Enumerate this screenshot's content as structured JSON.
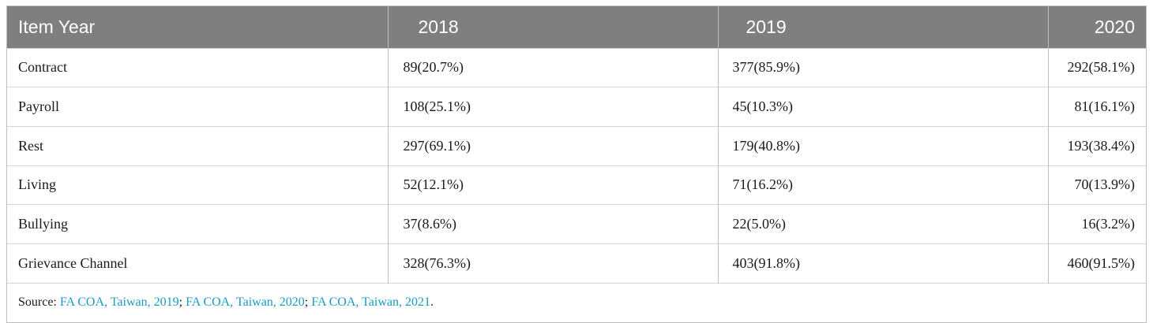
{
  "table": {
    "headers": [
      "Item Year",
      "2018",
      "2019",
      "2020"
    ],
    "rows": [
      {
        "item": "Contract",
        "v2018": "89(20.7%)",
        "v2019": "377(85.9%)",
        "v2020": "292(58.1%)"
      },
      {
        "item": "Payroll",
        "v2018": "108(25.1%)",
        "v2019": "45(10.3%)",
        "v2020": "81(16.1%)"
      },
      {
        "item": "Rest",
        "v2018": "297(69.1%)",
        "v2019": "179(40.8%)",
        "v2020": "193(38.4%)"
      },
      {
        "item": "Living",
        "v2018": "52(12.1%)",
        "v2019": "71(16.2%)",
        "v2020": "70(13.9%)"
      },
      {
        "item": "Bullying",
        "v2018": "37(8.6%)",
        "v2019": "22(5.0%)",
        "v2020": "16(3.2%)"
      },
      {
        "item": "Grievance Channel",
        "v2018": "328(76.3%)",
        "v2019": "403(91.8%)",
        "v2020": "460(91.5%)"
      }
    ],
    "source": {
      "label": "Source: ",
      "refs": [
        "FA COA, Taiwan, 2019",
        "FA COA, Taiwan, 2020",
        "FA COA, Taiwan, 2021"
      ],
      "sep1": "; ",
      "sep2": "; ",
      "end": "."
    }
  },
  "colors": {
    "header_bg": "#7f7f7f",
    "header_text": "#ffffff",
    "link": "#1a9bc1",
    "border": "#bdbdbd"
  }
}
